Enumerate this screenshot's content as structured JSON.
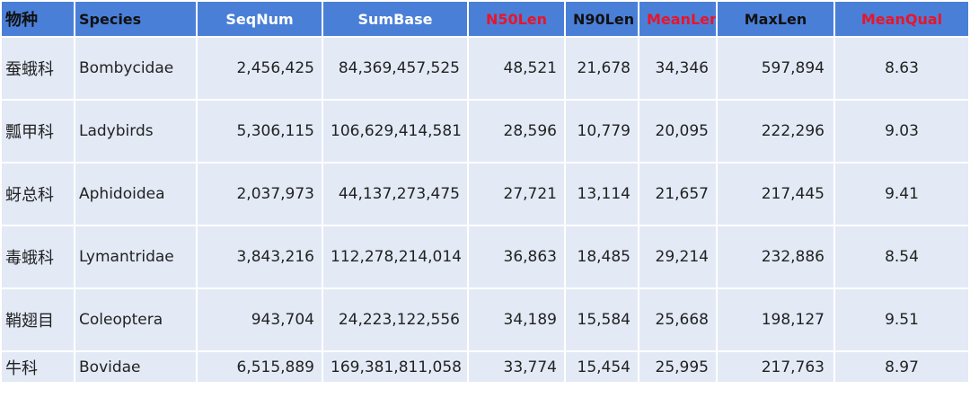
{
  "table": {
    "headers": [
      "物种",
      "Species",
      "SeqNum",
      "SumBase",
      "N50Len",
      "N90Len",
      "MeanLen",
      "MaxLen",
      "MeanQual"
    ],
    "rows": [
      [
        "蚕蛾科",
        "Bombycidae",
        "2,456,425",
        "84,369,457,525",
        "48,521",
        "21,678",
        "34,346",
        "597,894",
        "8.63"
      ],
      [
        "瓢甲科",
        "Ladybirds",
        "5,306,115",
        "106,629,414,581",
        "28,596",
        "10,779",
        "20,095",
        "222,296",
        "9.03"
      ],
      [
        "蚜总科",
        "Aphidoidea",
        "2,037,973",
        "44,137,273,475",
        "27,721",
        "13,114",
        "21,657",
        "217,445",
        "9.41"
      ],
      [
        "毒蛾科",
        "Lymantridae",
        "3,843,216",
        "112,278,214,014",
        "36,863",
        "18,485",
        "29,214",
        "232,886",
        "8.54"
      ],
      [
        "鞘翅目",
        "Coleoptera",
        "943,704",
        "24,223,122,556",
        "34,189",
        "15,584",
        "25,668",
        "198,127",
        "9.51"
      ],
      [
        "牛科",
        "Bovidae",
        "6,515,889",
        "169,381,811,058",
        "33,774",
        "15,454",
        "25,995",
        "217,763",
        "8.97"
      ]
    ]
  }
}
